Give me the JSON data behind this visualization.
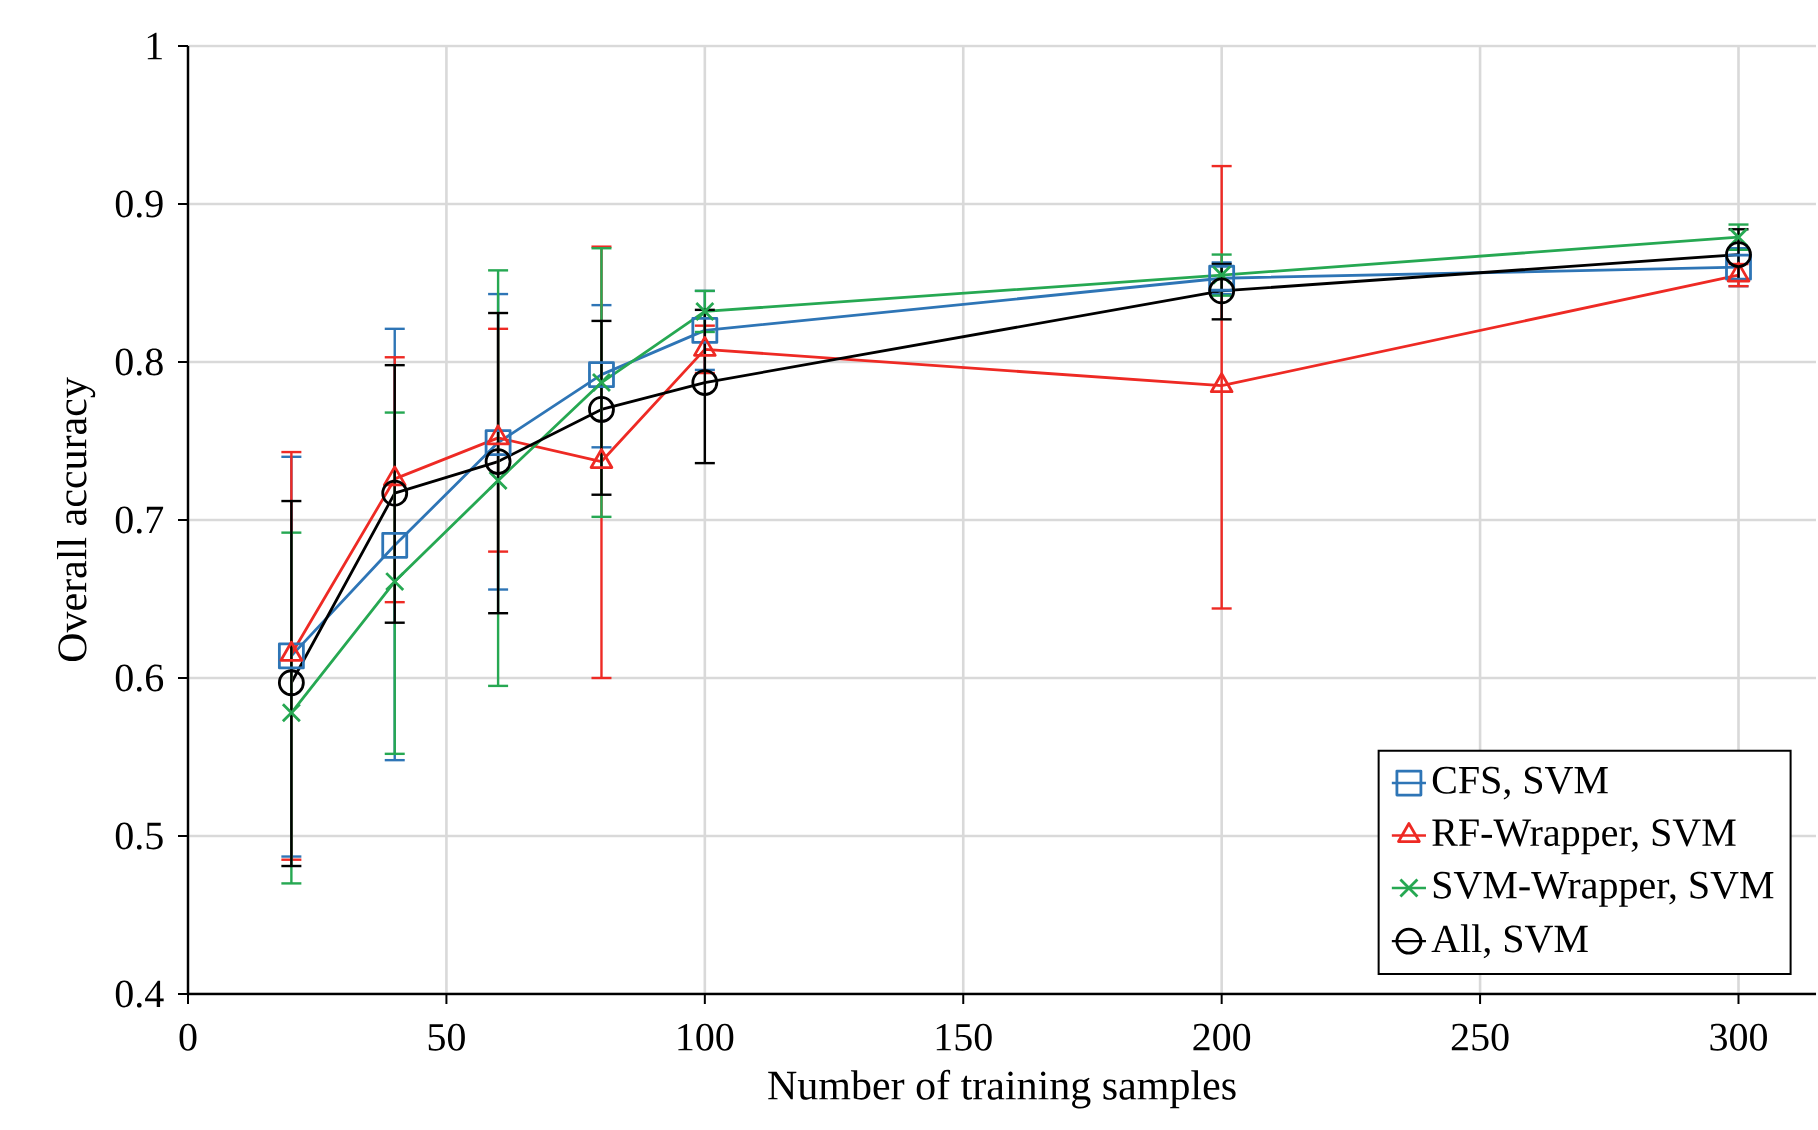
{
  "chart_data": {
    "type": "line",
    "xlabel": "Number of training samples",
    "ylabel": "Overall accuracy",
    "x": [
      20,
      40,
      60,
      80,
      100,
      200,
      300
    ],
    "xlim": [
      0,
      315
    ],
    "xticks": [
      0,
      50,
      100,
      150,
      200,
      250,
      300
    ],
    "ylim": [
      0.4,
      1
    ],
    "yticks": [
      0.4,
      0.5,
      0.6,
      0.7,
      0.8,
      0.9,
      1
    ],
    "grid": true,
    "legend": "bottom right",
    "line_style": "solid",
    "series": [
      {
        "name": "CFS, SVM",
        "color": "#2e75b6",
        "marker": "square",
        "values": [
          0.614,
          0.684,
          0.749,
          0.792,
          0.82,
          0.853,
          0.86
        ],
        "errors": [
          [
            0.487,
            0.74
          ],
          [
            0.548,
            0.821
          ],
          [
            0.656,
            0.843
          ],
          [
            0.746,
            0.836
          ],
          [
            0.795,
            0.845
          ],
          [
            0.843,
            0.863
          ],
          [
            0.848,
            0.872
          ]
        ]
      },
      {
        "name": "RF-Wrapper, SVM",
        "color": "#ee2a24",
        "marker": "triangle",
        "values": [
          0.615,
          0.726,
          0.752,
          0.737,
          0.808,
          0.785,
          0.855
        ],
        "errors": [
          [
            0.485,
            0.743
          ],
          [
            0.648,
            0.803
          ],
          [
            0.68,
            0.821
          ],
          [
            0.6,
            0.873
          ],
          [
            0.793,
            0.823
          ],
          [
            0.644,
            0.924
          ],
          [
            0.848,
            0.862
          ]
        ]
      },
      {
        "name": "SVM-Wrapper, SVM",
        "color": "#26a852",
        "marker": "cross",
        "values": [
          0.578,
          0.661,
          0.725,
          0.787,
          0.832,
          0.855,
          0.879
        ],
        "errors": [
          [
            0.47,
            0.692
          ],
          [
            0.552,
            0.768
          ],
          [
            0.595,
            0.858
          ],
          [
            0.702,
            0.872
          ],
          [
            0.819,
            0.845
          ],
          [
            0.842,
            0.868
          ],
          [
            0.871,
            0.887
          ]
        ]
      },
      {
        "name": "All, SVM",
        "color": "#000000",
        "marker": "circle",
        "values": [
          0.597,
          0.717,
          0.737,
          0.77,
          0.787,
          0.845,
          0.868
        ],
        "errors": [
          [
            0.481,
            0.712
          ],
          [
            0.635,
            0.798
          ],
          [
            0.641,
            0.831
          ],
          [
            0.716,
            0.826
          ],
          [
            0.736,
            0.833
          ],
          [
            0.827,
            0.862
          ],
          [
            0.852,
            0.884
          ]
        ]
      }
    ]
  }
}
